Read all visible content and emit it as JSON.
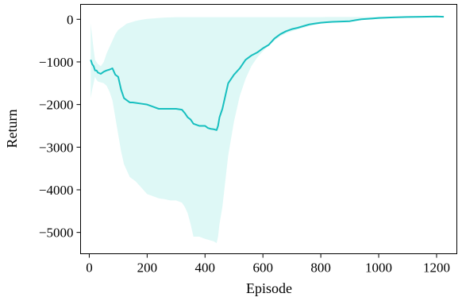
{
  "chart_data": {
    "type": "line",
    "title": "",
    "xlabel": "Episode",
    "ylabel": "Return",
    "xlim": [
      -30,
      1270
    ],
    "ylim": [
      -5500,
      350
    ],
    "xticks": [
      0,
      200,
      400,
      600,
      800,
      1000,
      1200
    ],
    "yticks": [
      0,
      -1000,
      -2000,
      -3000,
      -4000,
      -5000
    ],
    "x_tick_labels": [
      "0",
      "200",
      "400",
      "600",
      "800",
      "1000",
      "1200"
    ],
    "y_tick_labels": [
      "0",
      "−1000",
      "−2000",
      "−3000",
      "−4000",
      "−5000"
    ],
    "grid": false,
    "colors": {
      "line": "#17bfbf",
      "band": "#b5f0ec"
    },
    "series": [
      {
        "x": [
          5,
          10,
          15,
          20,
          25,
          30,
          40,
          50,
          60,
          70,
          80,
          90,
          100,
          110,
          120,
          130,
          140,
          150,
          160,
          180,
          200,
          220,
          240,
          260,
          280,
          300,
          320,
          330,
          340,
          350,
          360,
          380,
          400,
          410,
          420,
          430,
          440,
          445,
          450,
          460,
          470,
          480,
          500,
          520,
          540,
          560,
          580,
          600,
          620,
          640,
          660,
          680,
          700,
          720,
          740,
          760,
          780,
          800,
          820,
          840,
          860,
          880,
          900,
          920,
          940,
          960,
          980,
          1000,
          1050,
          1100,
          1150,
          1200,
          1225
        ],
        "y": [
          -950,
          -1050,
          -1100,
          -1200,
          -1200,
          -1250,
          -1280,
          -1230,
          -1200,
          -1180,
          -1150,
          -1300,
          -1350,
          -1650,
          -1850,
          -1900,
          -1950,
          -1950,
          -1960,
          -1980,
          -2000,
          -2050,
          -2100,
          -2100,
          -2100,
          -2100,
          -2120,
          -2200,
          -2300,
          -2350,
          -2450,
          -2500,
          -2500,
          -2550,
          -2570,
          -2580,
          -2600,
          -2500,
          -2300,
          -2100,
          -1800,
          -1500,
          -1300,
          -1150,
          -950,
          -850,
          -780,
          -680,
          -600,
          -450,
          -350,
          -280,
          -230,
          -200,
          -160,
          -120,
          -100,
          -80,
          -70,
          -60,
          -55,
          -50,
          -45,
          -20,
          0,
          10,
          20,
          30,
          45,
          55,
          60,
          65,
          60
        ],
        "lower": [
          -1850,
          -1650,
          -1500,
          -1350,
          -1420,
          -1460,
          -1480,
          -1500,
          -1560,
          -1700,
          -1900,
          -2300,
          -2700,
          -3100,
          -3400,
          -3550,
          -3700,
          -3750,
          -3800,
          -3950,
          -4100,
          -4150,
          -4200,
          -4220,
          -4250,
          -4250,
          -4300,
          -4400,
          -4550,
          -4800,
          -5100,
          -5100,
          -5150,
          -5170,
          -5190,
          -5210,
          -5250,
          -5100,
          -4800,
          -4400,
          -3800,
          -3200,
          -2400,
          -1800,
          -1400,
          -1100,
          -900,
          -750,
          -620,
          -500,
          -400,
          -330,
          -280,
          -240,
          -200,
          -160,
          -130,
          -100,
          -80,
          -60,
          -50,
          -40,
          -30,
          -20,
          -10,
          -5,
          0,
          10,
          30,
          45,
          55,
          60,
          55
        ],
        "upper": [
          -100,
          -400,
          -700,
          -950,
          -1000,
          -1050,
          -1100,
          -1000,
          -800,
          -650,
          -500,
          -350,
          -250,
          -200,
          -150,
          -100,
          -80,
          -60,
          -40,
          -10,
          10,
          20,
          30,
          40,
          45,
          50,
          50,
          50,
          50,
          50,
          50,
          50,
          50,
          50,
          50,
          50,
          50,
          50,
          50,
          50,
          50,
          50,
          50,
          50,
          50,
          50,
          50,
          50,
          50,
          50,
          50,
          50,
          50,
          50,
          50,
          50,
          50,
          50,
          55,
          55,
          55,
          55,
          55,
          55,
          55,
          55,
          55,
          60,
          60,
          65,
          70,
          70,
          70
        ]
      }
    ]
  }
}
